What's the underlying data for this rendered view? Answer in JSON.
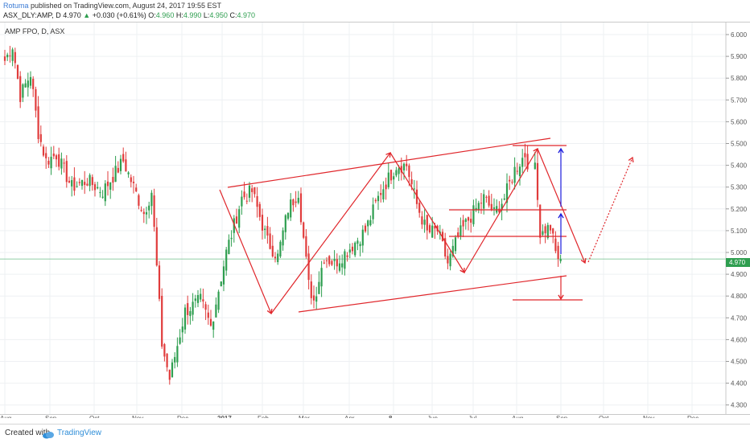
{
  "header": {
    "user": "Rotuma",
    "published": "published on TradingView.com, August 24, 2017 19:55 EST",
    "symbol_line": "ASX_DLY:AMP, D",
    "last_price": "4.970",
    "change": "+0.030 (+0.61%)",
    "ohlc": {
      "o_label": "O:",
      "o": "4.960",
      "h_label": "H:",
      "h": "4.990",
      "l_label": "L:",
      "l": "4.950",
      "c_label": "C:",
      "c": "4.970"
    }
  },
  "chart_data": {
    "type": "candlestick",
    "title": "AMP FPO, D, ASX",
    "ylim": [
      4.3,
      6.03
    ],
    "y_ticks": [
      "6.000",
      "5.900",
      "5.800",
      "5.700",
      "5.600",
      "5.500",
      "5.400",
      "5.300",
      "5.200",
      "5.100",
      "5.000",
      "4.900",
      "4.800",
      "4.700",
      "4.600",
      "4.500",
      "4.400",
      "4.300"
    ],
    "x_ticks": [
      "Aug",
      "Sep",
      "Oct",
      "Nov",
      "Dec",
      "2017",
      "Feb",
      "Mar",
      "Apr",
      "8",
      "Jun",
      "Jul",
      "Aug",
      "Sep",
      "Oct",
      "Nov",
      "Dec"
    ],
    "last_price_label": "4.970",
    "up_color": "#2e9e4f",
    "down_color": "#e03c3c",
    "annotation_color": "#e0262b",
    "target_arrow_color": "#1a1adb",
    "grid": true,
    "anchors": [
      {
        "i": 0,
        "p": 5.88
      },
      {
        "i": 3,
        "p": 5.95
      },
      {
        "i": 6,
        "p": 5.72
      },
      {
        "i": 10,
        "p": 5.82
      },
      {
        "i": 13,
        "p": 5.55
      },
      {
        "i": 16,
        "p": 5.42
      },
      {
        "i": 20,
        "p": 5.45
      },
      {
        "i": 26,
        "p": 5.3
      },
      {
        "i": 32,
        "p": 5.33
      },
      {
        "i": 38,
        "p": 5.28
      },
      {
        "i": 46,
        "p": 5.42
      },
      {
        "i": 54,
        "p": 5.18
      },
      {
        "i": 57,
        "p": 5.28
      },
      {
        "i": 61,
        "p": 4.58
      },
      {
        "i": 64,
        "p": 4.42
      },
      {
        "i": 70,
        "p": 4.73
      },
      {
        "i": 76,
        "p": 4.78
      },
      {
        "i": 80,
        "p": 4.66
      },
      {
        "i": 86,
        "p": 5.0
      },
      {
        "i": 92,
        "p": 5.25
      },
      {
        "i": 96,
        "p": 5.28
      },
      {
        "i": 102,
        "p": 5.05
      },
      {
        "i": 106,
        "p": 4.98
      },
      {
        "i": 110,
        "p": 5.2
      },
      {
        "i": 114,
        "p": 5.28
      },
      {
        "i": 118,
        "p": 4.85
      },
      {
        "i": 120,
        "p": 4.78
      },
      {
        "i": 124,
        "p": 4.98
      },
      {
        "i": 128,
        "p": 4.95
      },
      {
        "i": 134,
        "p": 5.02
      },
      {
        "i": 140,
        "p": 5.1
      },
      {
        "i": 146,
        "p": 5.28
      },
      {
        "i": 152,
        "p": 5.4
      },
      {
        "i": 156,
        "p": 5.4
      },
      {
        "i": 160,
        "p": 5.22
      },
      {
        "i": 164,
        "p": 5.09
      },
      {
        "i": 168,
        "p": 5.1
      },
      {
        "i": 172,
        "p": 4.95
      },
      {
        "i": 176,
        "p": 5.07
      },
      {
        "i": 180,
        "p": 5.15
      },
      {
        "i": 186,
        "p": 5.25
      },
      {
        "i": 190,
        "p": 5.18
      },
      {
        "i": 194,
        "p": 5.25
      },
      {
        "i": 198,
        "p": 5.38
      },
      {
        "i": 202,
        "p": 5.45
      },
      {
        "i": 204,
        "p": 5.38
      },
      {
        "i": 206,
        "p": 5.1
      },
      {
        "i": 210,
        "p": 5.12
      },
      {
        "i": 213,
        "p": 4.97
      }
    ],
    "gap_from_index": 214,
    "last_candle": {
      "o": 4.96,
      "h": 4.99,
      "l": 4.95,
      "c": 4.97
    }
  }
}
